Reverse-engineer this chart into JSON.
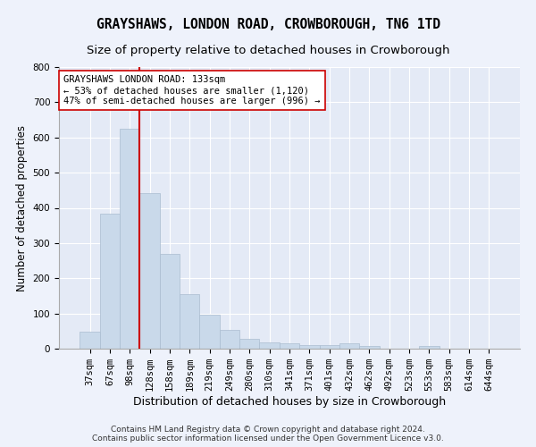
{
  "title": "GRAYSHAWS, LONDON ROAD, CROWBOROUGH, TN6 1TD",
  "subtitle": "Size of property relative to detached houses in Crowborough",
  "xlabel": "Distribution of detached houses by size in Crowborough",
  "ylabel": "Number of detached properties",
  "categories": [
    "37sqm",
    "67sqm",
    "98sqm",
    "128sqm",
    "158sqm",
    "189sqm",
    "219sqm",
    "249sqm",
    "280sqm",
    "310sqm",
    "341sqm",
    "371sqm",
    "401sqm",
    "432sqm",
    "462sqm",
    "492sqm",
    "523sqm",
    "553sqm",
    "583sqm",
    "614sqm",
    "644sqm"
  ],
  "values": [
    47,
    383,
    624,
    441,
    268,
    155,
    97,
    53,
    29,
    18,
    16,
    11,
    11,
    15,
    8,
    0,
    0,
    8,
    0,
    0,
    0
  ],
  "bar_color": "#c9d9ea",
  "bar_edgecolor": "#aabdd0",
  "vline_color": "#cc0000",
  "annotation_text": "GRAYSHAWS LONDON ROAD: 133sqm\n← 53% of detached houses are smaller (1,120)\n47% of semi-detached houses are larger (996) →",
  "annotation_box_facecolor": "#ffffff",
  "annotation_box_edgecolor": "#cc0000",
  "ylim": [
    0,
    800
  ],
  "yticks": [
    0,
    100,
    200,
    300,
    400,
    500,
    600,
    700,
    800
  ],
  "title_fontsize": 10.5,
  "subtitle_fontsize": 9.5,
  "xlabel_fontsize": 9,
  "ylabel_fontsize": 8.5,
  "tick_fontsize": 7.5,
  "annotation_fontsize": 7.5,
  "footer_text": "Contains HM Land Registry data © Crown copyright and database right 2024.\nContains public sector information licensed under the Open Government Licence v3.0.",
  "footer_fontsize": 6.5,
  "background_color": "#eef2fb",
  "axes_facecolor": "#e4eaf6"
}
